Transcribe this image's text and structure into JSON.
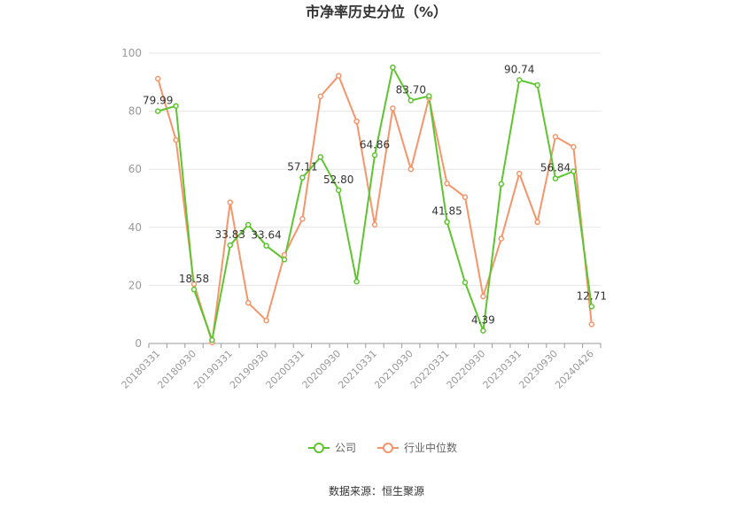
{
  "chart_data": {
    "type": "line",
    "title": "市净率历史分位（%）",
    "source": "数据来源：恒生聚源",
    "ylim": [
      0,
      100
    ],
    "yticks": [
      0,
      20,
      40,
      60,
      80,
      100
    ],
    "grid": true,
    "legend_position": "bottom",
    "x": [
      "20180331",
      "20180630",
      "20180930",
      "20181231",
      "20190331",
      "20190630",
      "20190930",
      "20191231",
      "20200331",
      "20200630",
      "20200930",
      "20201231",
      "20210331",
      "20210630",
      "20210930",
      "20211231",
      "20220331",
      "20220630",
      "20220930",
      "20221231",
      "20230331",
      "20230630",
      "20230930",
      "20231231",
      "20240426"
    ],
    "xtick_labels": [
      "20180331",
      "20180930",
      "20190331",
      "20190930",
      "20200331",
      "20200930",
      "20210331",
      "20210930",
      "20220331",
      "20220930",
      "20230331",
      "20230930",
      "20240426"
    ],
    "series": [
      {
        "name": "公司",
        "color": "#5ec430",
        "values": [
          79.99,
          81.8,
          18.58,
          1.2,
          33.83,
          40.9,
          33.64,
          28.9,
          57.11,
          64.2,
          52.8,
          21.3,
          64.86,
          95.1,
          83.7,
          85.2,
          41.85,
          21.0,
          4.39,
          54.9,
          90.74,
          89.0,
          56.84,
          59.3,
          12.71
        ],
        "labels": [
          "79.99",
          "",
          "18.58",
          "",
          "33.83",
          "",
          "33.64",
          "",
          "57.11",
          "",
          "52.80",
          "",
          "64.86",
          "",
          "83.70",
          "",
          "41.85",
          "",
          "4.39",
          "",
          "90.74",
          "",
          "56.84",
          "",
          "12.71"
        ]
      },
      {
        "name": "行业中位数",
        "color": "#f5956a",
        "values": [
          91.2,
          70.1,
          20.5,
          0.4,
          48.6,
          14.0,
          7.9,
          30.5,
          42.9,
          85.1,
          92.2,
          76.5,
          40.9,
          81.0,
          60.0,
          84.5,
          55.1,
          50.4,
          16.2,
          36.1,
          58.5,
          41.8,
          71.2,
          67.7,
          6.6
        ]
      }
    ]
  }
}
